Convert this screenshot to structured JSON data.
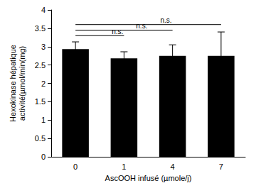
{
  "chart_data": {
    "type": "bar",
    "x_label": "AscOOH infusé (µmole/j)",
    "y_label": "Hexokinase hépatique\nactivité(µmol/min(mg)",
    "categories": [
      "0",
      "1",
      "4",
      "7"
    ],
    "values": [
      2.93,
      2.68,
      2.75,
      2.75
    ],
    "errors": [
      0.2,
      0.18,
      0.3,
      0.65
    ],
    "color": "#000000",
    "ylim": [
      0,
      4
    ],
    "yticks": [
      0,
      0.5,
      1,
      1.5,
      2,
      2.5,
      3,
      3.5,
      4
    ],
    "grid": false,
    "annotations": [
      {
        "from": "0",
        "to": "1",
        "y": 3.3,
        "label": "n.s."
      },
      {
        "from": "0",
        "to": "4",
        "y": 3.45,
        "label": "n.s."
      },
      {
        "from": "0",
        "to": "7",
        "y": 3.6,
        "label": "n.s."
      }
    ]
  }
}
